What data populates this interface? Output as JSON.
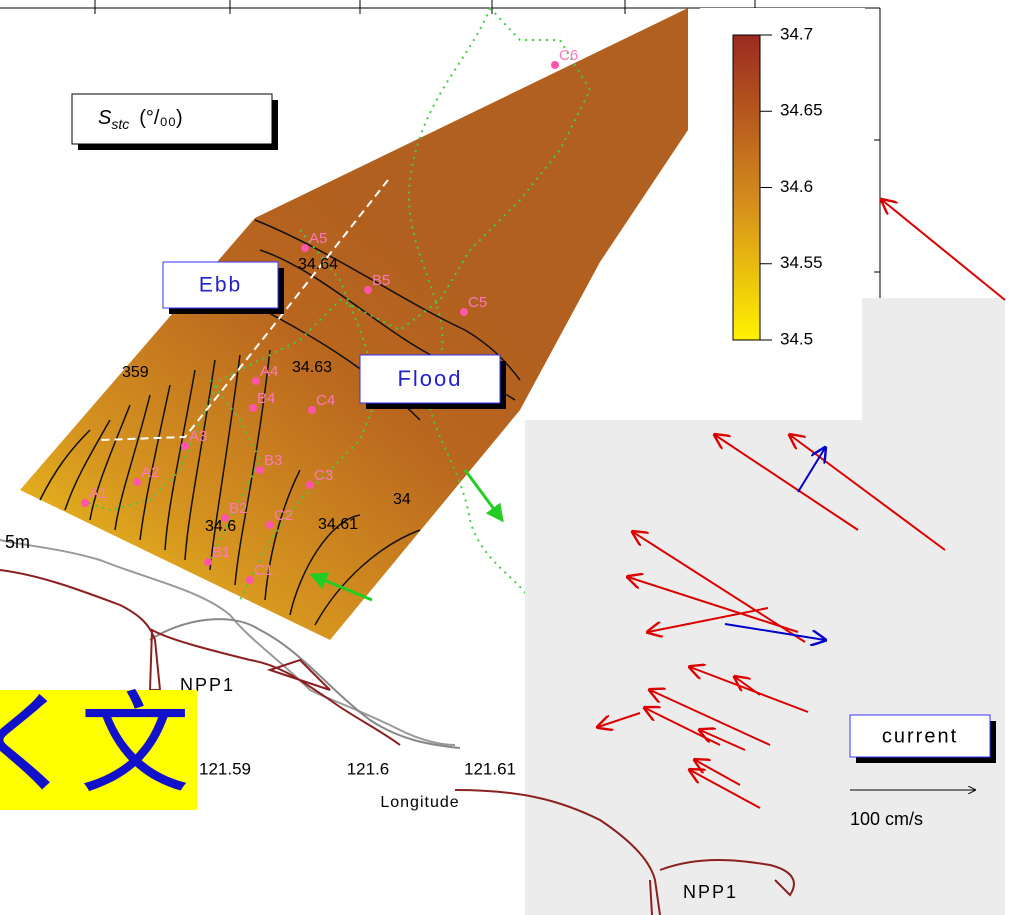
{
  "legend_box": {
    "symbol": "S",
    "subscript": "stc",
    "unit": "(°/₀₀)"
  },
  "colorbar": {
    "lim": [
      34.5,
      34.7
    ],
    "ticks": [
      34.7,
      34.65,
      34.6,
      34.55,
      34.5
    ]
  },
  "buttons": {
    "ebb": "Ebb",
    "flood": "Flood",
    "current": "current"
  },
  "scale_label": "100 cm/s",
  "x_axis": {
    "label": "Longitude",
    "ticks": [
      121.59,
      121.6,
      121.61
    ]
  },
  "depth_label": "5m",
  "stations": [
    "C6",
    "A5",
    "B5",
    "C5",
    "A4",
    "B4",
    "C4",
    "A3",
    "B3",
    "C3",
    "A2",
    "A1",
    "B2",
    "C2",
    "B1",
    "C1"
  ],
  "contour_labels": [
    "34.64",
    "34.63",
    "359",
    "34.61",
    "34",
    "34.6"
  ],
  "coast_labels": [
    "NPP1",
    "NPP1"
  ],
  "banner": "く文"
}
